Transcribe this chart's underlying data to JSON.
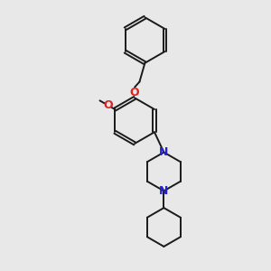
{
  "background_color": "#e8e8e8",
  "bond_color": "#1a1a1a",
  "N_color": "#2222cc",
  "O_color": "#dd2222",
  "line_width": 1.4,
  "dbo": 0.055,
  "figsize": [
    3.0,
    3.0
  ],
  "dpi": 100,
  "xlim": [
    0,
    10
  ],
  "ylim": [
    0,
    10
  ]
}
